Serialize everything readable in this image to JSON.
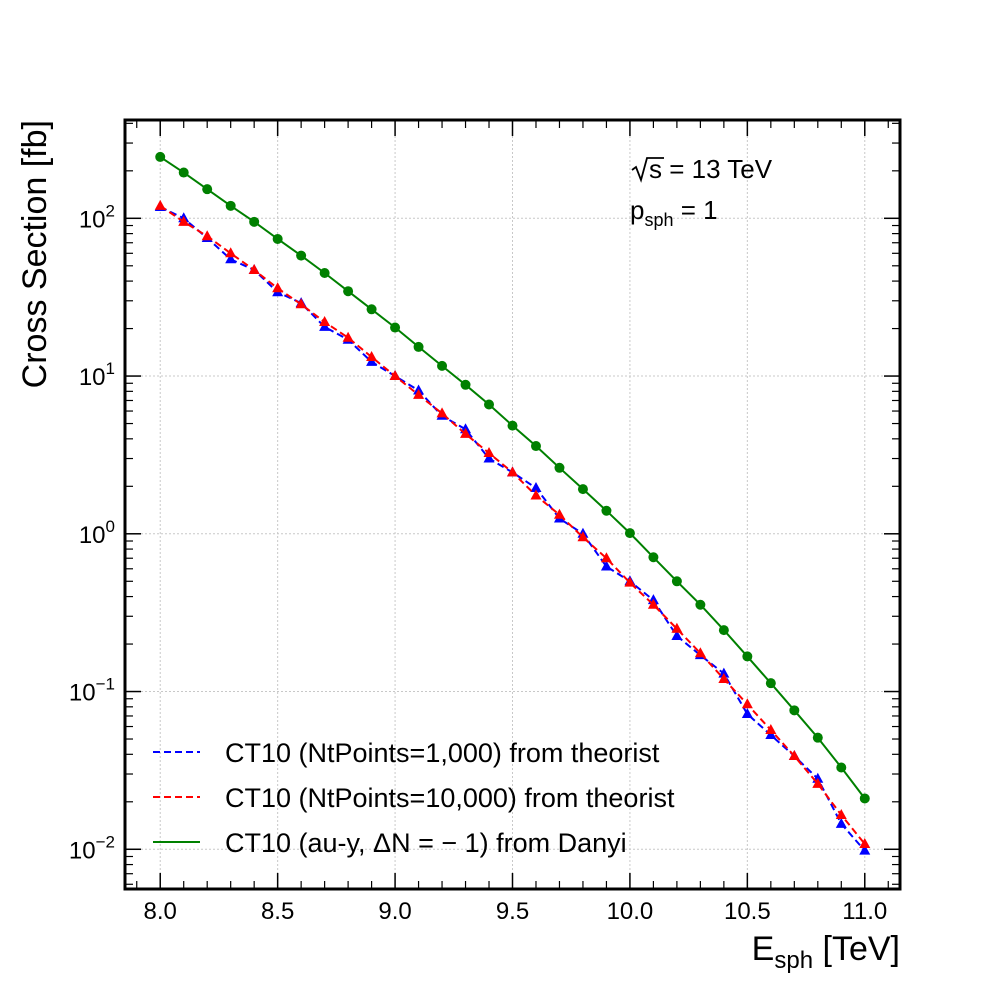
{
  "chart_data": {
    "type": "line",
    "xlabel": {
      "main": "E",
      "sub": "sph",
      "unit": " [TeV]"
    },
    "ylabel": "Cross Section [fb]",
    "xlim": [
      7.85,
      11.15
    ],
    "ylim": [
      0.0056,
      420
    ],
    "yscale": "log",
    "grid": true,
    "legend_position": "bottom-left",
    "x_ticks": [
      {
        "value": 8.0,
        "label": "8.0"
      },
      {
        "value": 8.5,
        "label": "8.5"
      },
      {
        "value": 9.0,
        "label": "9.0"
      },
      {
        "value": 9.5,
        "label": "9.5"
      },
      {
        "value": 10.0,
        "label": "10.0"
      },
      {
        "value": 10.5,
        "label": "10.5"
      },
      {
        "value": 11.0,
        "label": "11.0"
      }
    ],
    "y_ticks": [
      {
        "value": 0.01,
        "base": "10",
        "exp": "−2"
      },
      {
        "value": 0.1,
        "base": "10",
        "exp": "−1"
      },
      {
        "value": 1,
        "base": "10",
        "exp": "0"
      },
      {
        "value": 10,
        "base": "10",
        "exp": "1"
      },
      {
        "value": 100,
        "base": "10",
        "exp": "2"
      }
    ],
    "annotations": [
      {
        "root_arg": "s",
        "text": " = 13 TeV"
      },
      {
        "main": "p",
        "sub": "sph",
        "text": " = 1"
      }
    ],
    "x": [
      8.0,
      8.1,
      8.2,
      8.3,
      8.4,
      8.5,
      8.6,
      8.7,
      8.8,
      8.9,
      9.0,
      9.1,
      9.2,
      9.3,
      9.4,
      9.5,
      9.6,
      9.7,
      9.8,
      9.9,
      10.0,
      10.1,
      10.2,
      10.3,
      10.4,
      10.5,
      10.6,
      10.7,
      10.8,
      10.9,
      11.0
    ],
    "series": [
      {
        "name": "CT10 (NtPoints=1,000) from theorist",
        "color": "#0000ff",
        "line_style": "dashed",
        "marker": "triangle",
        "values": [
          118,
          100,
          75,
          55,
          47,
          34,
          29,
          20.5,
          17,
          12.3,
          10,
          8.1,
          5.6,
          4.6,
          3.0,
          2.45,
          1.95,
          1.25,
          1.0,
          0.62,
          0.5,
          0.38,
          0.225,
          0.17,
          0.13,
          0.072,
          0.053,
          0.039,
          0.028,
          0.0145,
          0.0098
        ]
      },
      {
        "name": "CT10 (NtPoints=10,000) from theorist",
        "color": "#ff0000",
        "line_style": "dashed",
        "marker": "triangle",
        "values": [
          120,
          95,
          77,
          60,
          47,
          36,
          28.5,
          22,
          17.5,
          13.2,
          10,
          7.6,
          5.8,
          4.3,
          3.25,
          2.45,
          1.75,
          1.32,
          0.95,
          0.7,
          0.49,
          0.355,
          0.25,
          0.175,
          0.12,
          0.083,
          0.057,
          0.039,
          0.026,
          0.0165,
          0.0108
        ]
      },
      {
        "name": "CT10 (au-y, ΔN = − 1) from Danyi",
        "color": "#008000",
        "line_style": "solid",
        "marker": "circle",
        "values": [
          245,
          195,
          153,
          120,
          95,
          74,
          58,
          45,
          34.5,
          26.5,
          20.3,
          15.3,
          11.6,
          8.8,
          6.6,
          4.85,
          3.6,
          2.62,
          1.92,
          1.4,
          1.01,
          0.71,
          0.5,
          0.355,
          0.245,
          0.167,
          0.113,
          0.076,
          0.051,
          0.033,
          0.021
        ]
      }
    ]
  }
}
